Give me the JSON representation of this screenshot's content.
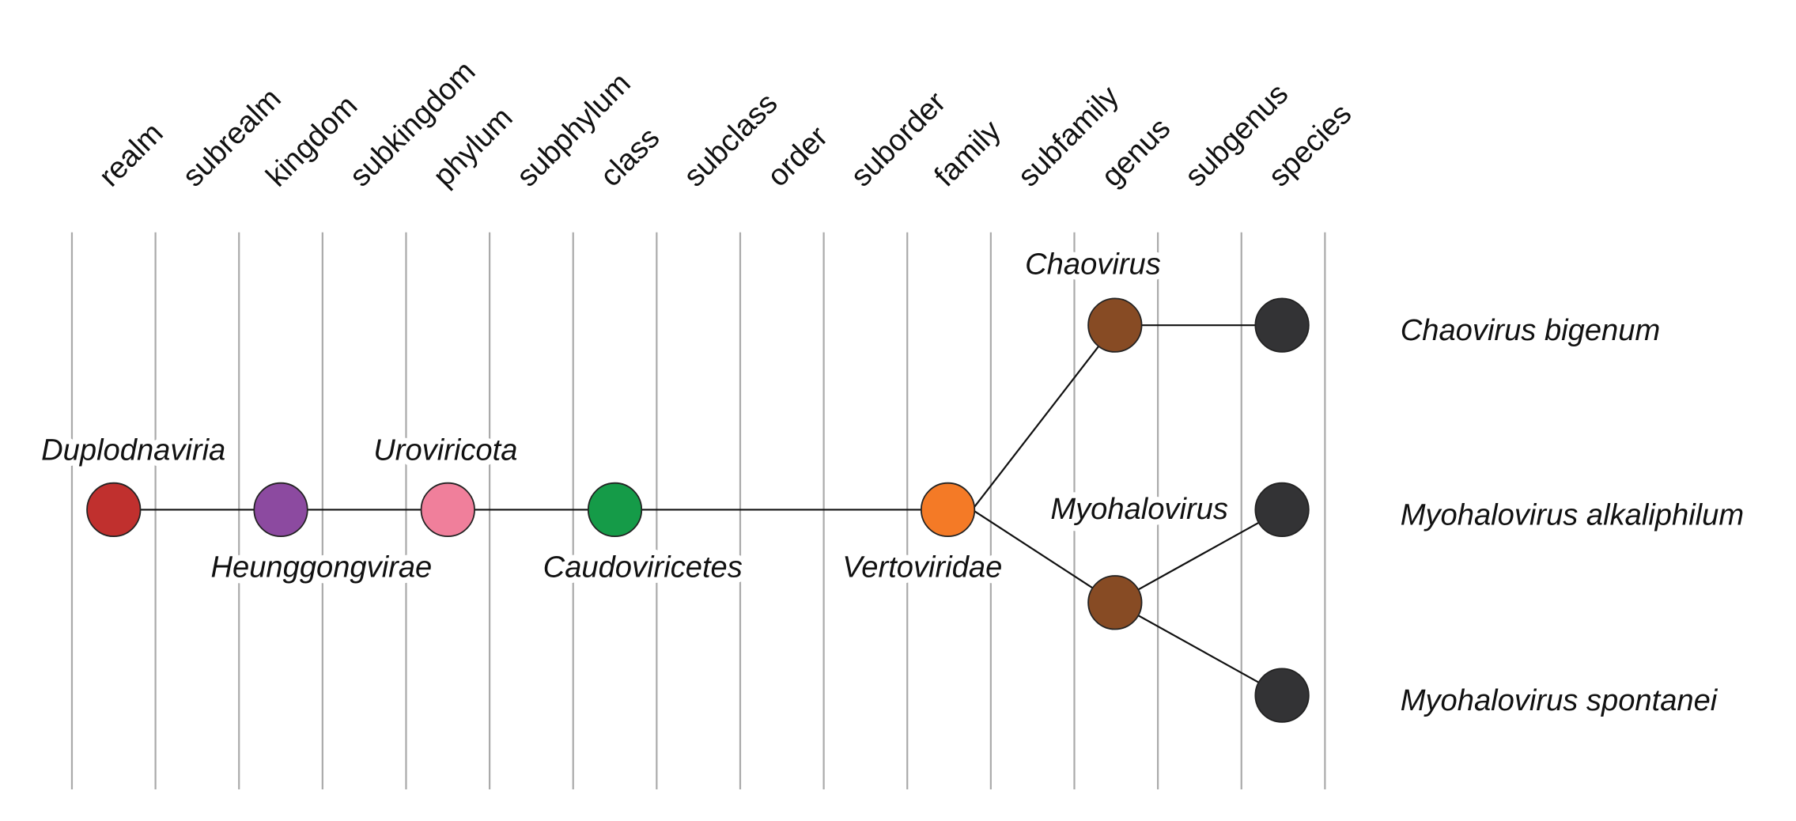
{
  "ranks": [
    "realm",
    "subrealm",
    "kingdom",
    "subkingdom",
    "phylum",
    "subphylum",
    "class",
    "subclass",
    "order",
    "suborder",
    "family",
    "subfamily",
    "genus",
    "subgenus",
    "species"
  ],
  "taxa": {
    "realm": "Duplodnaviria",
    "kingdom": "Heunggongvirae",
    "phylum": "Uroviricota",
    "class": "Caudoviricetes",
    "family": "Vertoviridae",
    "genera": [
      "Chaovirus",
      "Myohalovirus"
    ],
    "species": [
      "Chaovirus bigenum",
      "Myohalovirus alkaliphilum",
      "Myohalovirus spontanei"
    ]
  }
}
